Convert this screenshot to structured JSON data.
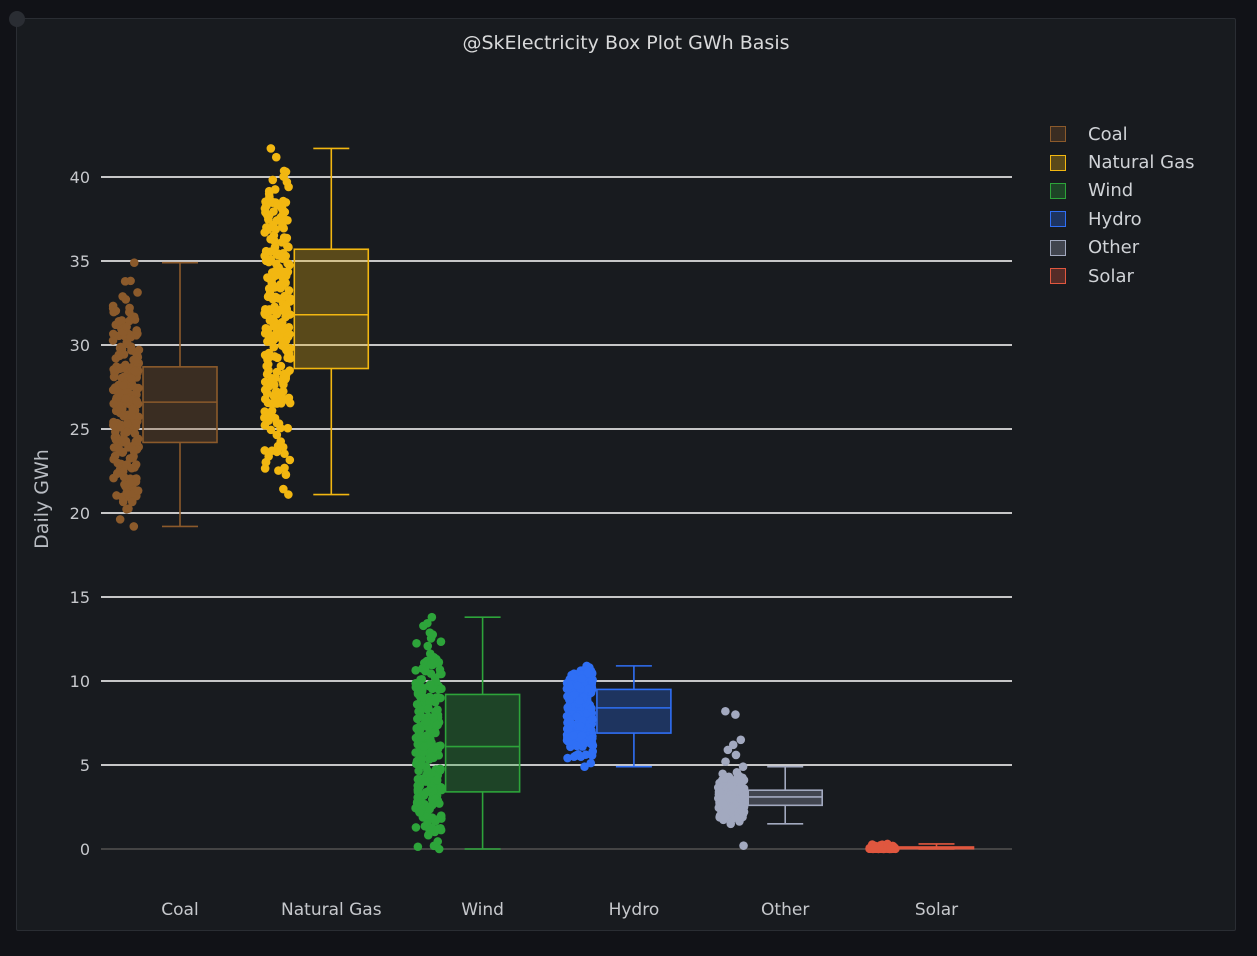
{
  "chart_data": {
    "type": "box",
    "title": "@SkElectricity Box Plot GWh Basis",
    "xlabel": "",
    "ylabel": "Daily GWh",
    "ylim": [
      -1.5,
      45
    ],
    "yticks": [
      0,
      5,
      10,
      15,
      20,
      25,
      30,
      35,
      40
    ],
    "categories": [
      "Coal",
      "Natural Gas",
      "Wind",
      "Hydro",
      "Other",
      "Solar"
    ],
    "series": [
      {
        "name": "Coal",
        "color": "#8b5a2b",
        "min": 19.2,
        "q1": 24.2,
        "median": 26.6,
        "q3": 28.7,
        "max": 34.9,
        "outliers": []
      },
      {
        "name": "Natural Gas",
        "color": "#f2b711",
        "min": 21.1,
        "q1": 28.6,
        "median": 31.8,
        "q3": 35.7,
        "max": 41.7,
        "outliers": []
      },
      {
        "name": "Wind",
        "color": "#2da43a",
        "min": 0.0,
        "q1": 3.4,
        "median": 6.1,
        "q3": 9.2,
        "max": 13.8,
        "outliers": []
      },
      {
        "name": "Hydro",
        "color": "#2f6ff5",
        "min": 4.9,
        "q1": 6.9,
        "median": 8.4,
        "q3": 9.5,
        "max": 10.9,
        "outliers": []
      },
      {
        "name": "Other",
        "color": "#a2a9bf",
        "min": 1.5,
        "q1": 2.6,
        "median": 3.1,
        "q3": 3.5,
        "max": 4.9,
        "outliers": [
          0.2,
          5.2,
          5.6,
          5.9,
          6.2,
          6.5,
          8.0,
          8.2
        ]
      },
      {
        "name": "Solar",
        "color": "#e0573f",
        "min": 0.0,
        "q1": 0.02,
        "median": 0.05,
        "q3": 0.12,
        "max": 0.3,
        "outliers": []
      }
    ],
    "legend_position": "right",
    "grid": true
  }
}
